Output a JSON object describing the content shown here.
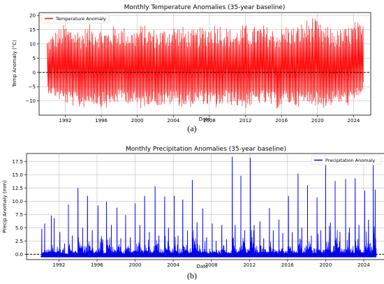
{
  "chart_data": [
    {
      "type": "line",
      "title": "Monthly Temperature Anomalies (35-year baseline)",
      "xlabel": "Date",
      "ylabel": "Temp Anomaly (°C)",
      "xlim": [
        1989.1,
        2025.9
      ],
      "ylim": [
        -15,
        21
      ],
      "x_ticks": [
        "1992",
        "1996",
        "2000",
        "2004",
        "2008",
        "2012",
        "2016",
        "2020",
        "2024"
      ],
      "y_ticks": [
        "−10",
        "−5",
        "0",
        "5",
        "10",
        "15",
        "20"
      ],
      "grid": true,
      "legend": "top-left",
      "reference_line": 0,
      "series": [
        {
          "name": "Temperature Anomaly",
          "color": "#ff0000",
          "x_range": [
            1990.0,
            2025.1
          ],
          "upper_envelope": [
            12,
            15,
            17,
            16,
            15,
            17,
            16,
            15,
            17,
            16,
            15,
            17,
            16,
            15,
            16,
            17,
            16,
            15,
            16,
            17,
            18,
            16,
            15,
            17,
            16,
            17,
            16,
            15,
            17,
            16,
            18,
            20,
            17,
            16,
            15,
            16,
            18,
            17
          ],
          "lower_envelope": [
            -7,
            -9,
            -11,
            -12,
            -13,
            -11,
            -12,
            -13,
            -11,
            -10,
            -12,
            -13,
            -11,
            -12,
            -12,
            -11,
            -13,
            -12,
            -11,
            -12,
            -13,
            -11,
            -12,
            -13,
            -12,
            -11,
            -12,
            -13,
            -11,
            -12,
            -12,
            -11,
            -13,
            -12,
            -11,
            -12,
            -11,
            -6
          ]
        }
      ]
    },
    {
      "type": "line",
      "title": "Monthly Precipitation Anomalies (35-year baseline)",
      "xlabel": "Date",
      "ylabel": "Precip Anomaly (mm)",
      "xlim": [
        1988.6,
        2026.2
      ],
      "ylim": [
        -1,
        19
      ],
      "x_ticks": [
        "1992",
        "1996",
        "2000",
        "2004",
        "2008",
        "2012",
        "2016",
        "2020",
        "2024"
      ],
      "y_ticks": [
        "0.0",
        "2.5",
        "5.0",
        "7.5",
        "10.0",
        "12.5",
        "15.0",
        "17.5"
      ],
      "grid": true,
      "legend": "top-right",
      "reference_line": 0,
      "series": [
        {
          "name": "Precipitation Anomaly",
          "color": "#0000ff",
          "baseline": -0.4,
          "peaks": [
            [
              1990.2,
              4.8
            ],
            [
              1990.5,
              5.8
            ],
            [
              1991.2,
              7.3
            ],
            [
              1991.5,
              6.8
            ],
            [
              1992.1,
              4.2
            ],
            [
              1992.6,
              2.0
            ],
            [
              1993.0,
              9.4
            ],
            [
              1993.4,
              3.5
            ],
            [
              1994.0,
              12.5
            ],
            [
              1994.5,
              5.0
            ],
            [
              1995.0,
              11.0
            ],
            [
              1995.5,
              4.5
            ],
            [
              1996.1,
              9.2
            ],
            [
              1996.6,
              2.8
            ],
            [
              1997.0,
              9.9
            ],
            [
              1997.5,
              5.5
            ],
            [
              1998.1,
              8.8
            ],
            [
              1998.5,
              3.0
            ],
            [
              1999.0,
              7.4
            ],
            [
              1999.5,
              3.2
            ],
            [
              2000.0,
              9.6
            ],
            [
              2000.5,
              5.5
            ],
            [
              2001.0,
              11.0
            ],
            [
              2001.5,
              4.2
            ],
            [
              2002.1,
              12.8
            ],
            [
              2002.5,
              3.5
            ],
            [
              2003.1,
              10.9
            ],
            [
              2003.5,
              5.0
            ],
            [
              2004.1,
              11.0
            ],
            [
              2004.5,
              3.5
            ],
            [
              2005.0,
              10.3
            ],
            [
              2005.5,
              4.5
            ],
            [
              2006.0,
              14.0
            ],
            [
              2006.5,
              6.0
            ],
            [
              2007.1,
              8.6
            ],
            [
              2007.5,
              3.2
            ],
            [
              2008.1,
              5.8
            ],
            [
              2008.5,
              2.5
            ],
            [
              2009.1,
              5.5
            ],
            [
              2009.6,
              2.8
            ],
            [
              2010.2,
              18.4
            ],
            [
              2010.5,
              5.5
            ],
            [
              2011.1,
              14.8
            ],
            [
              2011.5,
              4.5
            ],
            [
              2012.1,
              18.2
            ],
            [
              2012.5,
              5.5
            ],
            [
              2013.1,
              6.2
            ],
            [
              2013.5,
              3.0
            ],
            [
              2014.1,
              8.7
            ],
            [
              2014.5,
              4.5
            ],
            [
              2015.1,
              6.5
            ],
            [
              2015.5,
              4.0
            ],
            [
              2016.1,
              11.0
            ],
            [
              2016.5,
              4.2
            ],
            [
              2017.1,
              15.2
            ],
            [
              2017.5,
              5.0
            ],
            [
              2018.1,
              13.0
            ],
            [
              2018.5,
              3.5
            ],
            [
              2019.1,
              10.7
            ],
            [
              2019.5,
              4.5
            ],
            [
              2020.0,
              16.8
            ],
            [
              2020.5,
              6.0
            ],
            [
              2021.0,
              13.8
            ],
            [
              2021.5,
              4.2
            ],
            [
              2022.1,
              14.2
            ],
            [
              2022.5,
              5.0
            ],
            [
              2023.1,
              14.3
            ],
            [
              2023.5,
              5.5
            ],
            [
              2024.1,
              12.0
            ],
            [
              2024.5,
              6.5
            ],
            [
              2025.0,
              16.8
            ],
            [
              2025.2,
              12.2
            ]
          ]
        }
      ]
    }
  ],
  "captions": {
    "a": "(a)",
    "b": "(b)"
  }
}
